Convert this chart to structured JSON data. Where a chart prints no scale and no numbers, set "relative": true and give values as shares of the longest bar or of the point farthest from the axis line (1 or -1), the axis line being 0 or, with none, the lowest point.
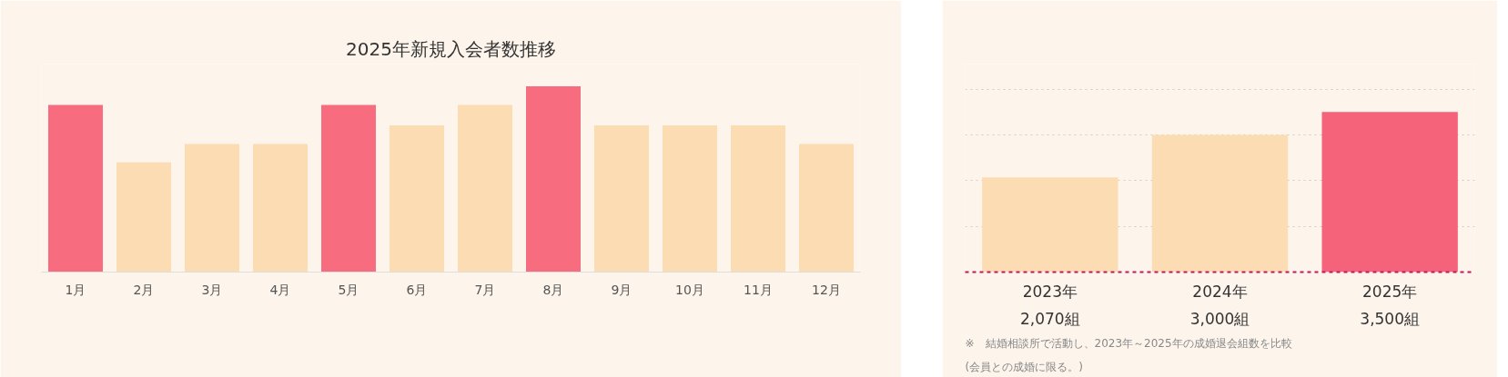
{
  "chart_data": [
    {
      "type": "bar",
      "title": "2025年新規入会者数推移",
      "relative": true,
      "categories": [
        "1月",
        "2月",
        "3月",
        "4月",
        "5月",
        "6月",
        "7月",
        "8月",
        "9月",
        "10月",
        "11月",
        "12月"
      ],
      "values": [
        0.9,
        0.59,
        0.69,
        0.69,
        0.9,
        0.79,
        0.9,
        1,
        0.79,
        0.79,
        0.79,
        0.69
      ],
      "colors": [
        "#f76c7e",
        "#fcdcb2",
        "#fcdcb2",
        "#fcdcb2",
        "#f76c7e",
        "#fcdcb2",
        "#fcdcb2",
        "#f76c7e",
        "#fcdcb2",
        "#fcdcb2",
        "#fcdcb2",
        "#fcdcb2"
      ],
      "grid": false
    },
    {
      "type": "bar",
      "categories": [
        "2023年",
        "2024年",
        "2025年"
      ],
      "values": [
        2070,
        3000,
        3500
      ],
      "colors": [
        "#fcdcb2",
        "#fcdcb2",
        "#f5637a"
      ],
      "value_labels": [
        "2,070組",
        "3,000組",
        "3,500組"
      ],
      "grid": "y",
      "annotations": [
        "※　結婚相談所で活動し、2023年～2025年の成婚退会組数を比較",
        "(会員との成婚に限る。)"
      ]
    }
  ]
}
